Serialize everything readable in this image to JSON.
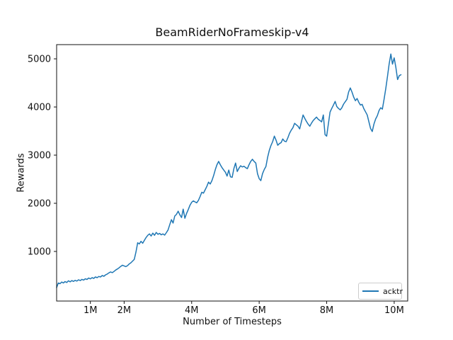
{
  "chart_data": {
    "type": "line",
    "title": "BeamRiderNoFrameskip-v4",
    "xlabel": "Number of Timesteps",
    "ylabel": "Rewards",
    "x_unit": "millions of timesteps",
    "xlim": [
      0,
      10.4
    ],
    "ylim": [
      -30,
      5295
    ],
    "grid": false,
    "background": "#ffffff",
    "legend": {
      "position": "lower right",
      "entries": [
        "acktr"
      ]
    },
    "x_ticks": [
      {
        "value": 1,
        "label": "1M"
      },
      {
        "value": 2,
        "label": "2M"
      },
      {
        "value": 4,
        "label": "4M"
      },
      {
        "value": 6,
        "label": "6M"
      },
      {
        "value": 8,
        "label": "8M"
      },
      {
        "value": 10,
        "label": "10M"
      }
    ],
    "y_ticks": [
      {
        "value": 1000,
        "label": "1000"
      },
      {
        "value": 2000,
        "label": "2000"
      },
      {
        "value": 3000,
        "label": "3000"
      },
      {
        "value": 4000,
        "label": "4000"
      },
      {
        "value": 5000,
        "label": "5000"
      }
    ],
    "series": [
      {
        "name": "acktr",
        "color": "#1f77b4",
        "line_width": 1.5,
        "x": [
          0,
          0.05,
          0.1,
          0.15,
          0.2,
          0.25,
          0.3,
          0.35,
          0.4,
          0.45,
          0.5,
          0.55,
          0.6,
          0.65,
          0.7,
          0.75,
          0.8,
          0.85,
          0.9,
          0.95,
          1,
          1.05,
          1.1,
          1.15,
          1.2,
          1.25,
          1.3,
          1.35,
          1.4,
          1.45,
          1.5,
          1.55,
          1.6,
          1.65,
          1.7,
          1.75,
          1.8,
          1.85,
          1.9,
          1.95,
          2,
          2.05,
          2.1,
          2.15,
          2.2,
          2.25,
          2.3,
          2.35,
          2.4,
          2.45,
          2.5,
          2.55,
          2.6,
          2.65,
          2.7,
          2.75,
          2.8,
          2.85,
          2.9,
          2.95,
          3,
          3.05,
          3.1,
          3.15,
          3.2,
          3.25,
          3.3,
          3.35,
          3.4,
          3.45,
          3.5,
          3.55,
          3.6,
          3.65,
          3.7,
          3.75,
          3.8,
          3.85,
          3.9,
          3.95,
          4,
          4.05,
          4.1,
          4.15,
          4.2,
          4.25,
          4.3,
          4.35,
          4.4,
          4.45,
          4.5,
          4.55,
          4.6,
          4.65,
          4.7,
          4.75,
          4.8,
          4.85,
          4.9,
          4.95,
          5,
          5.05,
          5.1,
          5.15,
          5.2,
          5.25,
          5.3,
          5.35,
          5.4,
          5.45,
          5.5,
          5.55,
          5.6,
          5.65,
          5.7,
          5.75,
          5.8,
          5.85,
          5.9,
          5.95,
          6,
          6.05,
          6.1,
          6.15,
          6.2,
          6.25,
          6.3,
          6.35,
          6.4,
          6.45,
          6.5,
          6.55,
          6.6,
          6.65,
          6.7,
          6.75,
          6.8,
          6.85,
          6.9,
          6.95,
          7,
          7.05,
          7.1,
          7.15,
          7.2,
          7.25,
          7.3,
          7.35,
          7.4,
          7.45,
          7.5,
          7.55,
          7.6,
          7.65,
          7.7,
          7.75,
          7.8,
          7.85,
          7.9,
          7.95,
          8,
          8.05,
          8.1,
          8.15,
          8.2,
          8.25,
          8.3,
          8.35,
          8.4,
          8.45,
          8.5,
          8.55,
          8.6,
          8.65,
          8.7,
          8.75,
          8.8,
          8.85,
          8.9,
          8.95,
          9,
          9.05,
          9.1,
          9.15,
          9.2,
          9.25,
          9.3,
          9.35,
          9.4,
          9.45,
          9.5,
          9.55,
          9.6,
          9.65,
          9.7,
          9.75,
          9.8,
          9.85,
          9.9,
          9.95,
          10,
          10.05,
          10.1,
          10.15,
          10.2
        ],
        "y": [
          250,
          345,
          330,
          365,
          345,
          375,
          355,
          390,
          368,
          395,
          378,
          400,
          385,
          412,
          395,
          420,
          405,
          432,
          418,
          448,
          430,
          455,
          440,
          470,
          455,
          480,
          470,
          500,
          485,
          515,
          530,
          555,
          575,
          560,
          585,
          615,
          635,
          660,
          690,
          715,
          700,
          685,
          705,
          740,
          765,
          800,
          835,
          990,
          1180,
          1155,
          1210,
          1170,
          1230,
          1290,
          1335,
          1365,
          1320,
          1380,
          1335,
          1395,
          1355,
          1375,
          1345,
          1365,
          1340,
          1390,
          1445,
          1555,
          1660,
          1590,
          1735,
          1770,
          1835,
          1760,
          1705,
          1880,
          1690,
          1790,
          1870,
          1960,
          2020,
          2050,
          2030,
          2010,
          2060,
          2140,
          2230,
          2210,
          2280,
          2350,
          2440,
          2400,
          2470,
          2575,
          2700,
          2800,
          2870,
          2800,
          2740,
          2690,
          2645,
          2565,
          2690,
          2550,
          2540,
          2720,
          2835,
          2660,
          2725,
          2780,
          2755,
          2770,
          2740,
          2720,
          2800,
          2870,
          2915,
          2870,
          2835,
          2615,
          2510,
          2470,
          2615,
          2700,
          2765,
          2955,
          3100,
          3200,
          3280,
          3395,
          3310,
          3205,
          3240,
          3260,
          3335,
          3290,
          3280,
          3360,
          3455,
          3520,
          3570,
          3660,
          3630,
          3600,
          3545,
          3690,
          3835,
          3765,
          3700,
          3645,
          3600,
          3665,
          3720,
          3755,
          3790,
          3745,
          3720,
          3690,
          3835,
          3425,
          3395,
          3645,
          3895,
          3970,
          4040,
          4115,
          4010,
          3970,
          3940,
          3985,
          4060,
          4110,
          4160,
          4310,
          4395,
          4310,
          4205,
          4130,
          4175,
          4100,
          4040,
          4055,
          3965,
          3900,
          3835,
          3690,
          3555,
          3490,
          3645,
          3750,
          3820,
          3925,
          3985,
          3955,
          4160,
          4380,
          4630,
          4895,
          5100,
          4890,
          5020,
          4820,
          4570,
          4650,
          4670
        ]
      }
    ]
  }
}
